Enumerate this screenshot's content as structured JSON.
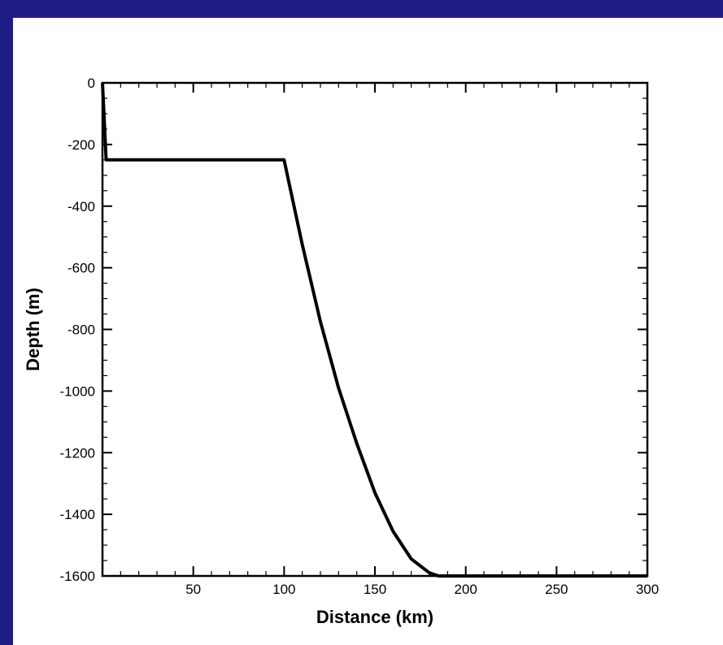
{
  "chart_data": {
    "type": "line",
    "xlabel": "Distance (km)",
    "ylabel": "Depth (m)",
    "xlim": [
      0,
      300
    ],
    "ylim": [
      -1600,
      0
    ],
    "x_ticks": [
      50,
      100,
      150,
      200,
      250,
      300
    ],
    "y_ticks": [
      0,
      -200,
      -400,
      -600,
      -800,
      -1000,
      -1200,
      -1400,
      -1600
    ],
    "x_minor_step": 10,
    "y_minor_step": 50,
    "grid": false,
    "line_color": "#000000",
    "series": [
      {
        "x": [
          0,
          2,
          100,
          110,
          120,
          130,
          140,
          150,
          160,
          170,
          180,
          185,
          187,
          200,
          250,
          300
        ],
        "y": [
          0,
          -250,
          -250,
          -525,
          -775,
          -990,
          -1170,
          -1330,
          -1455,
          -1545,
          -1590,
          -1600,
          -1600,
          -1600,
          -1600,
          -1600
        ]
      }
    ]
  },
  "colors": {
    "background": "#1f1d85",
    "panel": "#ffffff"
  }
}
